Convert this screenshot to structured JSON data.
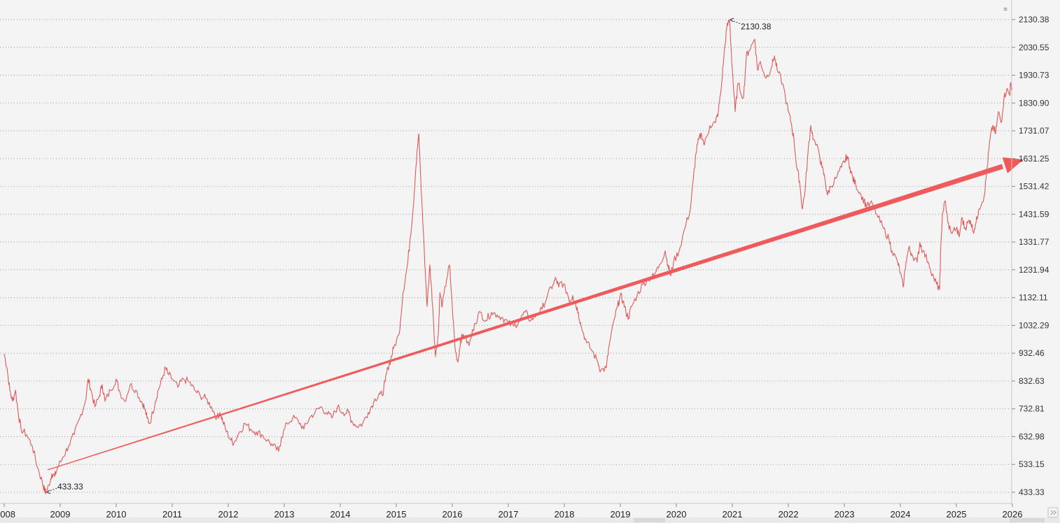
{
  "chart_data": {
    "type": "line",
    "title": "",
    "xlabel": "",
    "ylabel": "",
    "line_color": "#e05a5a",
    "trend_color": "#f05a5a",
    "ylim": [
      433.33,
      2130.38
    ],
    "y_ticks": [
      "2130.38",
      "2030.55",
      "1930.73",
      "1830.90",
      "1731.07",
      "1631.25",
      "1531.42",
      "1431.59",
      "1331.77",
      "1231.94",
      "1132.11",
      "1032.29",
      "932.46",
      "832.63",
      "732.81",
      "632.98",
      "533.15",
      "433.33"
    ],
    "x_ticks": [
      "008",
      "2009",
      "2010",
      "2011",
      "2012",
      "2013",
      "2014",
      "2015",
      "2016",
      "2017",
      "2018",
      "2019",
      "2020",
      "2021",
      "2022",
      "2023",
      "2024",
      "2025",
      "2026"
    ],
    "x_range": [
      2008.0,
      2026.0
    ],
    "series": [
      {
        "points": [
          [
            2008.0,
            930
          ],
          [
            2008.05,
            880
          ],
          [
            2008.1,
            800
          ],
          [
            2008.15,
            760
          ],
          [
            2008.2,
            800
          ],
          [
            2008.25,
            720
          ],
          [
            2008.3,
            660
          ],
          [
            2008.4,
            640
          ],
          [
            2008.5,
            600
          ],
          [
            2008.6,
            520
          ],
          [
            2008.68,
            470
          ],
          [
            2008.72,
            440
          ],
          [
            2008.75,
            433.33
          ],
          [
            2008.8,
            460
          ],
          [
            2008.85,
            500
          ],
          [
            2008.9,
            490
          ],
          [
            2008.95,
            520
          ],
          [
            2009.05,
            560
          ],
          [
            2009.15,
            600
          ],
          [
            2009.25,
            640
          ],
          [
            2009.35,
            700
          ],
          [
            2009.45,
            760
          ],
          [
            2009.5,
            840
          ],
          [
            2009.55,
            800
          ],
          [
            2009.62,
            740
          ],
          [
            2009.7,
            780
          ],
          [
            2009.75,
            820
          ],
          [
            2009.8,
            760
          ],
          [
            2009.9,
            800
          ],
          [
            2010.0,
            840
          ],
          [
            2010.05,
            800
          ],
          [
            2010.15,
            760
          ],
          [
            2010.25,
            820
          ],
          [
            2010.35,
            800
          ],
          [
            2010.45,
            760
          ],
          [
            2010.5,
            740
          ],
          [
            2010.55,
            700
          ],
          [
            2010.6,
            680
          ],
          [
            2010.7,
            760
          ],
          [
            2010.75,
            800
          ],
          [
            2010.82,
            840
          ],
          [
            2010.88,
            880
          ],
          [
            2010.92,
            860
          ],
          [
            2011.0,
            840
          ],
          [
            2011.1,
            810
          ],
          [
            2011.2,
            840
          ],
          [
            2011.3,
            830
          ],
          [
            2011.4,
            800
          ],
          [
            2011.5,
            780
          ],
          [
            2011.6,
            770
          ],
          [
            2011.7,
            740
          ],
          [
            2011.8,
            700
          ],
          [
            2011.85,
            720
          ],
          [
            2011.9,
            690
          ],
          [
            2011.97,
            650
          ],
          [
            2012.05,
            620
          ],
          [
            2012.1,
            610
          ],
          [
            2012.2,
            650
          ],
          [
            2012.3,
            680
          ],
          [
            2012.4,
            660
          ],
          [
            2012.5,
            650
          ],
          [
            2012.6,
            640
          ],
          [
            2012.7,
            620
          ],
          [
            2012.8,
            600
          ],
          [
            2012.9,
            580
          ],
          [
            2012.95,
            630
          ],
          [
            2013.05,
            680
          ],
          [
            2013.15,
            700
          ],
          [
            2013.25,
            690
          ],
          [
            2013.35,
            660
          ],
          [
            2013.45,
            700
          ],
          [
            2013.55,
            720
          ],
          [
            2013.65,
            740
          ],
          [
            2013.75,
            720
          ],
          [
            2013.85,
            700
          ],
          [
            2013.95,
            740
          ],
          [
            2014.05,
            720
          ],
          [
            2014.15,
            720
          ],
          [
            2014.2,
            690
          ],
          [
            2014.3,
            670
          ],
          [
            2014.4,
            680
          ],
          [
            2014.5,
            720
          ],
          [
            2014.6,
            760
          ],
          [
            2014.7,
            790
          ],
          [
            2014.75,
            780
          ],
          [
            2014.8,
            830
          ],
          [
            2014.85,
            880
          ],
          [
            2014.9,
            910
          ],
          [
            2014.95,
            950
          ],
          [
            2015.05,
            1000
          ],
          [
            2015.12,
            1150
          ],
          [
            2015.2,
            1250
          ],
          [
            2015.25,
            1350
          ],
          [
            2015.3,
            1450
          ],
          [
            2015.35,
            1600
          ],
          [
            2015.4,
            1720
          ],
          [
            2015.42,
            1640
          ],
          [
            2015.45,
            1500
          ],
          [
            2015.5,
            1300
          ],
          [
            2015.55,
            1100
          ],
          [
            2015.6,
            1250
          ],
          [
            2015.65,
            1100
          ],
          [
            2015.7,
            920
          ],
          [
            2015.75,
            1000
          ],
          [
            2015.78,
            1150
          ],
          [
            2015.82,
            1100
          ],
          [
            2015.9,
            1200
          ],
          [
            2015.95,
            1250
          ],
          [
            2016.0,
            1100
          ],
          [
            2016.05,
            950
          ],
          [
            2016.1,
            900
          ],
          [
            2016.15,
            980
          ],
          [
            2016.2,
            1000
          ],
          [
            2016.3,
            960
          ],
          [
            2016.4,
            1040
          ],
          [
            2016.5,
            1080
          ],
          [
            2016.6,
            1050
          ],
          [
            2016.7,
            1080
          ],
          [
            2016.8,
            1070
          ],
          [
            2016.9,
            1060
          ],
          [
            2017.0,
            1040
          ],
          [
            2017.1,
            1030
          ],
          [
            2017.2,
            1050
          ],
          [
            2017.3,
            1080
          ],
          [
            2017.4,
            1050
          ],
          [
            2017.5,
            1070
          ],
          [
            2017.6,
            1090
          ],
          [
            2017.7,
            1140
          ],
          [
            2017.8,
            1180
          ],
          [
            2017.85,
            1200
          ],
          [
            2017.9,
            1170
          ],
          [
            2017.95,
            1190
          ],
          [
            2018.05,
            1150
          ],
          [
            2018.1,
            1120
          ],
          [
            2018.15,
            1140
          ],
          [
            2018.2,
            1110
          ],
          [
            2018.25,
            1080
          ],
          [
            2018.3,
            1030
          ],
          [
            2018.4,
            970
          ],
          [
            2018.5,
            940
          ],
          [
            2018.6,
            900
          ],
          [
            2018.65,
            870
          ],
          [
            2018.75,
            880
          ],
          [
            2018.8,
            960
          ],
          [
            2018.9,
            1060
          ],
          [
            2018.95,
            1100
          ],
          [
            2019.0,
            1140
          ],
          [
            2019.05,
            1120
          ],
          [
            2019.1,
            1080
          ],
          [
            2019.15,
            1060
          ],
          [
            2019.2,
            1100
          ],
          [
            2019.3,
            1140
          ],
          [
            2019.4,
            1180
          ],
          [
            2019.5,
            1200
          ],
          [
            2019.6,
            1210
          ],
          [
            2019.7,
            1250
          ],
          [
            2019.8,
            1300
          ],
          [
            2019.85,
            1250
          ],
          [
            2019.9,
            1210
          ],
          [
            2019.95,
            1260
          ],
          [
            2020.05,
            1300
          ],
          [
            2020.15,
            1380
          ],
          [
            2020.25,
            1450
          ],
          [
            2020.3,
            1550
          ],
          [
            2020.35,
            1650
          ],
          [
            2020.4,
            1700
          ],
          [
            2020.45,
            1720
          ],
          [
            2020.5,
            1680
          ],
          [
            2020.6,
            1750
          ],
          [
            2020.7,
            1760
          ],
          [
            2020.75,
            1800
          ],
          [
            2020.8,
            1880
          ],
          [
            2020.85,
            2000
          ],
          [
            2020.9,
            2100
          ],
          [
            2020.95,
            2130.38
          ],
          [
            2021.0,
            1950
          ],
          [
            2021.05,
            1800
          ],
          [
            2021.1,
            1900
          ],
          [
            2021.2,
            1850
          ],
          [
            2021.25,
            2000
          ],
          [
            2021.3,
            2020
          ],
          [
            2021.4,
            2060
          ],
          [
            2021.45,
            1950
          ],
          [
            2021.5,
            1980
          ],
          [
            2021.6,
            1920
          ],
          [
            2021.7,
            1960
          ],
          [
            2021.75,
            2000
          ],
          [
            2021.8,
            1950
          ],
          [
            2021.9,
            1900
          ],
          [
            2022.0,
            1800
          ],
          [
            2022.05,
            1760
          ],
          [
            2022.1,
            1700
          ],
          [
            2022.15,
            1600
          ],
          [
            2022.2,
            1550
          ],
          [
            2022.25,
            1450
          ],
          [
            2022.3,
            1520
          ],
          [
            2022.35,
            1650
          ],
          [
            2022.4,
            1750
          ],
          [
            2022.45,
            1700
          ],
          [
            2022.55,
            1650
          ],
          [
            2022.6,
            1600
          ],
          [
            2022.65,
            1560
          ],
          [
            2022.7,
            1500
          ],
          [
            2022.75,
            1530
          ],
          [
            2022.85,
            1560
          ],
          [
            2022.95,
            1600
          ],
          [
            2023.0,
            1620
          ],
          [
            2023.05,
            1640
          ],
          [
            2023.1,
            1600
          ],
          [
            2023.15,
            1560
          ],
          [
            2023.2,
            1540
          ],
          [
            2023.3,
            1500
          ],
          [
            2023.35,
            1480
          ],
          [
            2023.4,
            1460
          ],
          [
            2023.5,
            1470
          ],
          [
            2023.6,
            1420
          ],
          [
            2023.7,
            1380
          ],
          [
            2023.8,
            1340
          ],
          [
            2023.85,
            1300
          ],
          [
            2023.95,
            1260
          ],
          [
            2024.0,
            1220
          ],
          [
            2024.05,
            1170
          ],
          [
            2024.1,
            1260
          ],
          [
            2024.15,
            1310
          ],
          [
            2024.2,
            1290
          ],
          [
            2024.3,
            1260
          ],
          [
            2024.35,
            1330
          ],
          [
            2024.4,
            1300
          ],
          [
            2024.5,
            1260
          ],
          [
            2024.6,
            1200
          ],
          [
            2024.65,
            1180
          ],
          [
            2024.7,
            1160
          ],
          [
            2024.72,
            1300
          ],
          [
            2024.75,
            1430
          ],
          [
            2024.8,
            1480
          ],
          [
            2024.85,
            1400
          ],
          [
            2024.9,
            1370
          ],
          [
            2025.0,
            1380
          ],
          [
            2025.05,
            1350
          ],
          [
            2025.1,
            1420
          ],
          [
            2025.15,
            1380
          ],
          [
            2025.2,
            1400
          ],
          [
            2025.25,
            1410
          ],
          [
            2025.3,
            1370
          ],
          [
            2025.35,
            1400
          ],
          [
            2025.4,
            1450
          ],
          [
            2025.5,
            1500
          ],
          [
            2025.55,
            1600
          ],
          [
            2025.6,
            1700
          ],
          [
            2025.65,
            1750
          ],
          [
            2025.7,
            1720
          ],
          [
            2025.75,
            1800
          ],
          [
            2025.8,
            1760
          ],
          [
            2025.85,
            1850
          ],
          [
            2025.9,
            1880
          ],
          [
            2025.95,
            1860
          ],
          [
            2025.97,
            1900
          ],
          [
            2026.0,
            1880
          ]
        ]
      }
    ],
    "annotations": [
      {
        "label": "2130.38"
      },
      {
        "label": "433.33"
      }
    ]
  }
}
